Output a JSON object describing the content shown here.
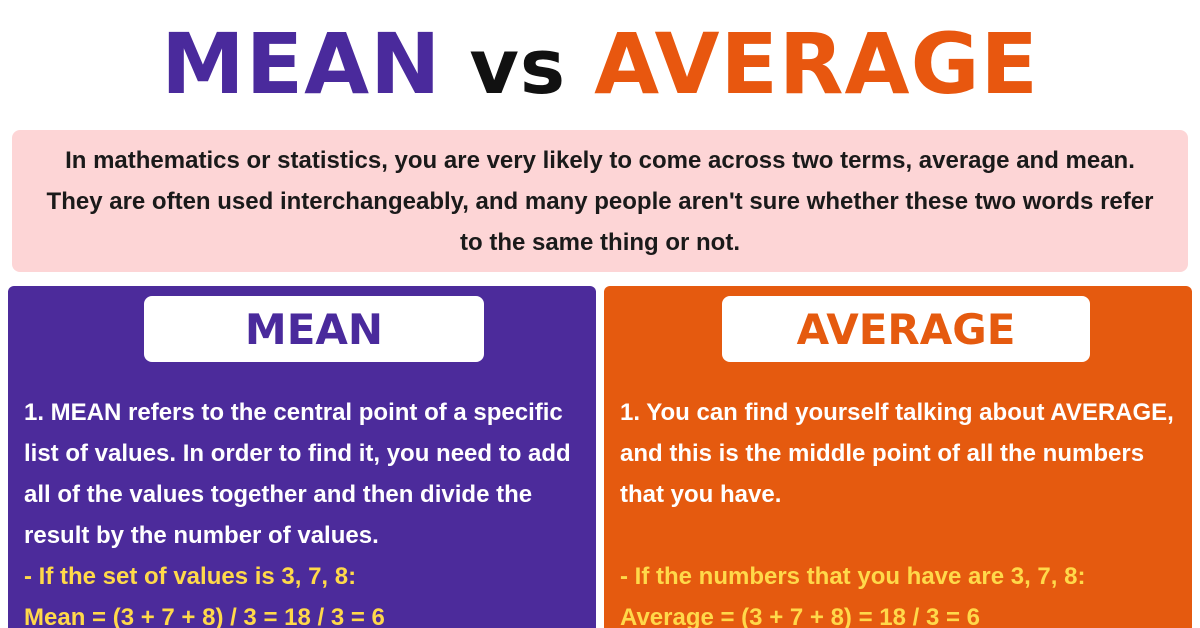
{
  "title": {
    "word1": "MEAN",
    "word2": "vs",
    "word3": "AVERAGE"
  },
  "intro": {
    "text": "In mathematics or statistics, you are very likely to come across two terms, average and mean. They are often used interchangeably, and many people aren't sure whether these two words refer to the same thing or not."
  },
  "mean_panel": {
    "heading": "MEAN",
    "point": "1. MEAN refers to the central point of a specific list of values. In order to find it, you need to add all of the values together and then divide the result by the number of values.",
    "example_line1": "- If the set of values is 3, 7, 8:",
    "example_line2": "Mean = (3 + 7 + 8) / 3 = 18 / 3 = 6"
  },
  "average_panel": {
    "heading": "AVERAGE",
    "point": "1. You can find yourself talking about AVERAGE, and this is the middle point of all the numbers that you have.",
    "example_line1": "- If the numbers that you have are 3, 7, 8:",
    "example_line2": "Average = (3 + 7 + 8) = 18 / 3 = 6"
  },
  "colors": {
    "mean": "#4c2b9b",
    "average": "#e55a0f",
    "intro_bg": "#fdd5d6",
    "example_text": "#ffd94a"
  }
}
